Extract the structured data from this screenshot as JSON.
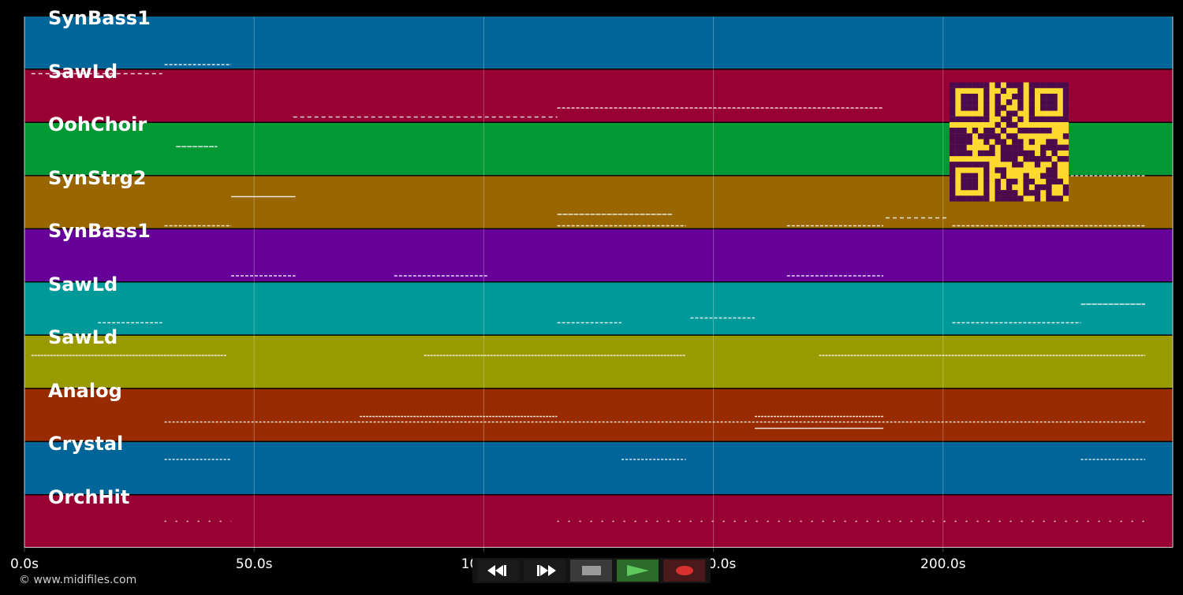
{
  "timeline": {
    "max_seconds": 250,
    "ticks": [
      {
        "value": 0,
        "label": "0.0s"
      },
      {
        "value": 50,
        "label": "50.0s"
      },
      {
        "value": 100,
        "label": "100.0s"
      },
      {
        "value": 150,
        "label": "150.0s"
      },
      {
        "value": 200,
        "label": "200.0s"
      }
    ]
  },
  "tracks": [
    {
      "name": "SynBass1",
      "color": "#006699"
    },
    {
      "name": "SawLd",
      "color": "#990033"
    },
    {
      "name": "OohChoir",
      "color": "#009933"
    },
    {
      "name": "SynStrg2",
      "color": "#996600"
    },
    {
      "name": "SynBass1",
      "color": "#660099"
    },
    {
      "name": "SawLd",
      "color": "#009999"
    },
    {
      "name": "SawLd",
      "color": "#999900"
    },
    {
      "name": "Analog",
      "color": "#992b00"
    },
    {
      "name": "Crystal",
      "color": "#006699"
    },
    {
      "name": "OrchHit",
      "color": "#990033"
    }
  ],
  "copyright": "© www.midifiles.com",
  "transport": {
    "rewind": {
      "icon": "rewind-icon",
      "color": "#1a1a1a"
    },
    "fast_forward": {
      "icon": "fast-forward-icon",
      "color": "#1a1a1a"
    },
    "stop": {
      "icon": "stop-icon",
      "color": "#3a3a3a"
    },
    "play": {
      "icon": "play-icon",
      "color": "#2a6b2a"
    },
    "record": {
      "icon": "record-icon",
      "color": "#4a1a1a"
    }
  },
  "qr_code": {
    "icon": "qr-code-icon",
    "background": "#ffd92f",
    "foreground": "#4b0a4b"
  }
}
